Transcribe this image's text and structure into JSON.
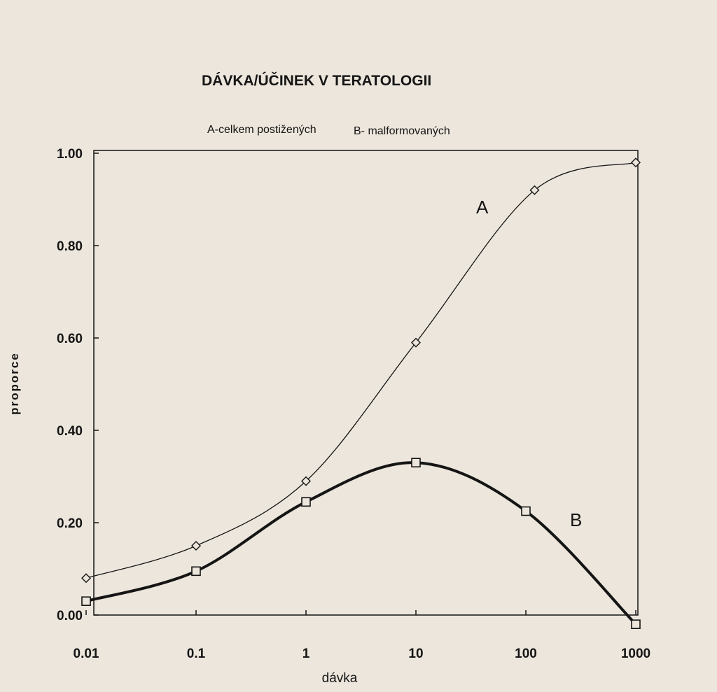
{
  "chart_data": {
    "type": "line",
    "title": "DÁVKA/ÚČINEK V TERATOLOGII",
    "subtitle_a": "A-celkem postižených",
    "subtitle_b": "B- malformovaných",
    "xlabel": "dávka",
    "ylabel": "proporce",
    "x_scale": "log",
    "xlim": [
      0.01,
      1000
    ],
    "ylim": [
      0,
      1.0
    ],
    "x_ticks": [
      "0.01",
      "0.1",
      "1",
      "10",
      "100",
      "1000"
    ],
    "y_ticks": [
      "0.00",
      "0.20",
      "0.40",
      "0.60",
      "0.80",
      "1.00"
    ],
    "grid": false,
    "series": [
      {
        "name": "A",
        "marker": "diamond",
        "line": "thin",
        "x": [
          0.01,
          0.1,
          1,
          10,
          120,
          1000
        ],
        "y": [
          0.08,
          0.15,
          0.29,
          0.59,
          0.92,
          0.98
        ]
      },
      {
        "name": "B",
        "marker": "square",
        "line": "thick",
        "x": [
          0.01,
          0.1,
          1,
          10,
          100,
          1000
        ],
        "y": [
          0.03,
          0.095,
          0.245,
          0.33,
          0.225,
          -0.02
        ]
      }
    ],
    "colors": {
      "ink": "#151515",
      "paper": "#ece6dc"
    }
  }
}
